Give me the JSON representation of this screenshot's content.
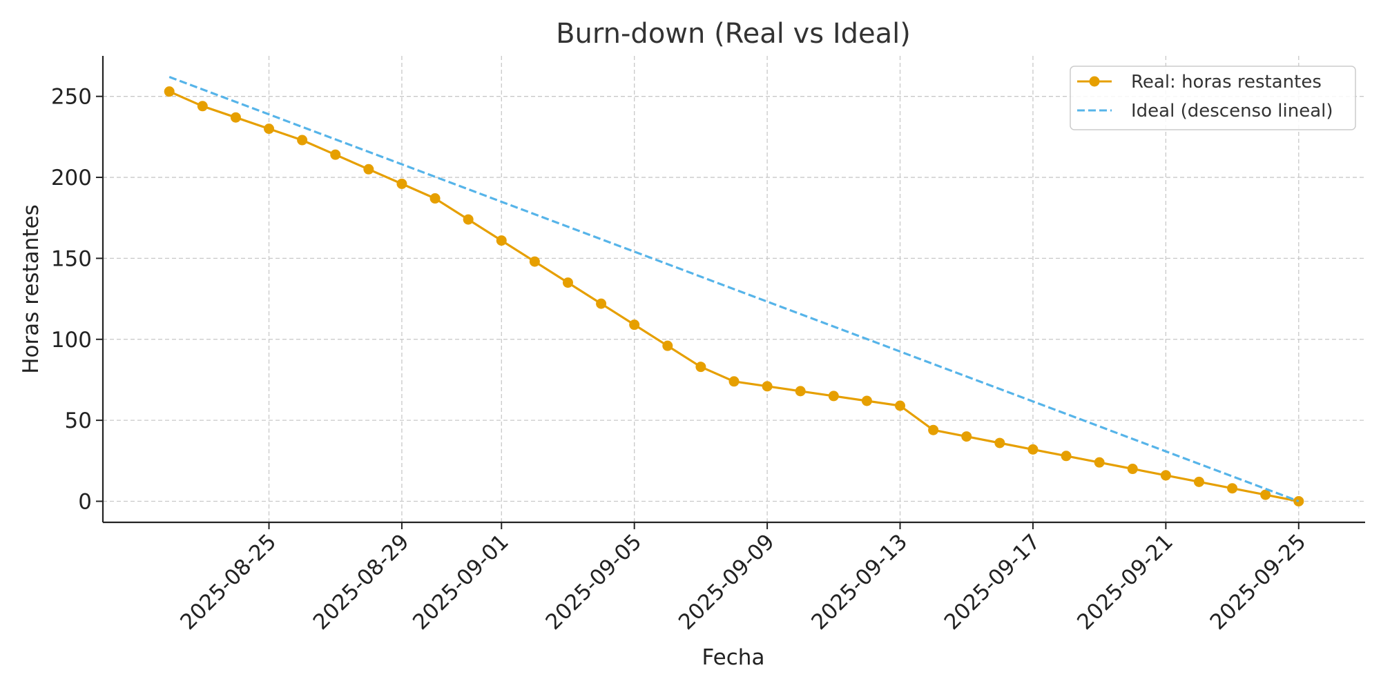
{
  "chart_data": {
    "type": "line",
    "title": "Burn-down (Real vs Ideal)",
    "xlabel": "Fecha",
    "ylabel": "Horas restantes",
    "x_type": "date",
    "x_ticks": [
      "2025-08-25",
      "2025-08-29",
      "2025-09-01",
      "2025-09-05",
      "2025-09-09",
      "2025-09-13",
      "2025-09-17",
      "2025-09-21",
      "2025-09-25"
    ],
    "y_ticks": [
      0,
      50,
      100,
      150,
      200,
      250
    ],
    "xlim": [
      "2025-08-20",
      "2025-09-27"
    ],
    "ylim": [
      -13,
      275
    ],
    "grid": true,
    "legend_position": "top-right",
    "series": [
      {
        "name": "Real: horas restantes",
        "style": "solid-with-markers",
        "color": "#E69F00",
        "x": [
          "2025-08-22",
          "2025-08-23",
          "2025-08-24",
          "2025-08-25",
          "2025-08-26",
          "2025-08-27",
          "2025-08-28",
          "2025-08-29",
          "2025-08-30",
          "2025-08-31",
          "2025-09-01",
          "2025-09-02",
          "2025-09-03",
          "2025-09-04",
          "2025-09-05",
          "2025-09-06",
          "2025-09-07",
          "2025-09-08",
          "2025-09-09",
          "2025-09-10",
          "2025-09-11",
          "2025-09-12",
          "2025-09-13",
          "2025-09-14",
          "2025-09-15",
          "2025-09-16",
          "2025-09-17",
          "2025-09-18",
          "2025-09-19",
          "2025-09-20",
          "2025-09-21",
          "2025-09-22",
          "2025-09-23",
          "2025-09-24",
          "2025-09-25"
        ],
        "values": [
          253,
          244,
          237,
          230,
          223,
          214,
          205,
          196,
          187,
          174,
          161,
          148,
          135,
          122,
          109,
          96,
          83,
          74,
          71,
          68,
          65,
          62,
          59,
          44,
          40,
          36,
          32,
          28,
          24,
          20,
          16,
          12,
          8,
          4,
          0
        ]
      },
      {
        "name": "Ideal (descenso lineal)",
        "style": "dashed",
        "color": "#56B4E9",
        "x": [
          "2025-08-22",
          "2025-09-25"
        ],
        "values": [
          262,
          0
        ]
      }
    ]
  }
}
